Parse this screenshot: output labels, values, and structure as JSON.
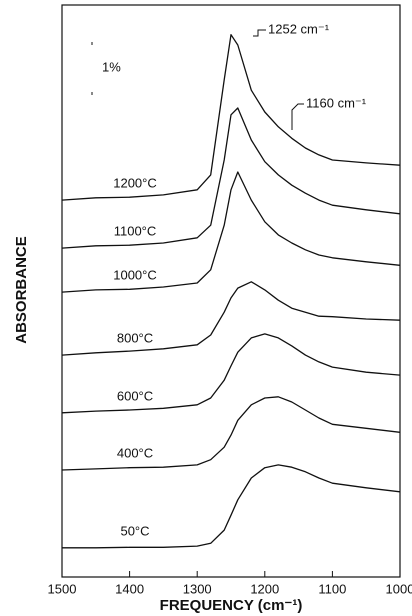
{
  "chart_data": {
    "type": "line",
    "xlabel": "FREQUENCY (cm⁻¹)",
    "ylabel": "ABSORBANCE",
    "scale_label": "1%",
    "annotations": [
      "1252 cm⁻¹",
      "1160 cm⁻¹"
    ],
    "xlim": [
      1500,
      1000
    ],
    "xticks": [
      1500,
      1400,
      1300,
      1200,
      1100,
      1000
    ],
    "ylim": [
      0,
      100
    ],
    "x": [
      1500,
      1450,
      1400,
      1350,
      1300,
      1280,
      1260,
      1250,
      1240,
      1220,
      1200,
      1180,
      1160,
      1140,
      1120,
      1100,
      1050,
      1000
    ],
    "series": [
      {
        "name": "1200°C",
        "color": "#111111",
        "values": [
          65.9,
          66.3,
          66.4,
          66.8,
          67.7,
          70.3,
          86.9,
          94.8,
          93.0,
          85.1,
          81.3,
          78.7,
          76.7,
          75.0,
          73.8,
          72.9,
          72.4,
          72.0
        ]
      },
      {
        "name": "1100°C",
        "color": "#111111",
        "values": [
          57.5,
          57.9,
          58.0,
          58.4,
          59.3,
          61.5,
          72.9,
          80.8,
          82.0,
          76.4,
          72.6,
          70.3,
          68.5,
          67.1,
          65.9,
          65.0,
          64.2,
          63.5
        ]
      },
      {
        "name": "1000°C",
        "color": "#111111",
        "values": [
          49.8,
          50.2,
          50.3,
          50.7,
          51.4,
          53.7,
          61.5,
          67.7,
          70.8,
          65.9,
          62.1,
          59.8,
          58.4,
          57.2,
          56.3,
          55.8,
          55.1,
          54.5
        ]
      },
      {
        "name": "800°C",
        "color": "#111111",
        "values": [
          38.8,
          39.2,
          39.5,
          39.9,
          40.6,
          42.3,
          46.3,
          48.8,
          50.5,
          51.6,
          50.2,
          48.4,
          47.0,
          46.3,
          45.6,
          45.5,
          45.1,
          44.9
        ]
      },
      {
        "name": "600°C",
        "color": "#111111",
        "values": [
          28.7,
          29.0,
          29.2,
          29.5,
          30.1,
          31.3,
          34.4,
          36.9,
          39.3,
          41.8,
          42.5,
          41.8,
          40.4,
          38.8,
          37.6,
          36.7,
          35.8,
          35.3
        ]
      },
      {
        "name": "400°C",
        "color": "#111111",
        "values": [
          18.7,
          18.9,
          19.1,
          19.2,
          19.6,
          20.5,
          22.7,
          24.8,
          27.4,
          30.1,
          31.3,
          31.5,
          30.6,
          29.2,
          27.8,
          26.7,
          26.0,
          25.3
        ]
      },
      {
        "name": "50°C",
        "color": "#111111",
        "values": [
          5.1,
          5.1,
          5.2,
          5.2,
          5.4,
          5.9,
          8.2,
          10.8,
          13.5,
          17.3,
          19.1,
          19.6,
          19.2,
          18.4,
          17.3,
          16.4,
          15.6,
          14.9
        ]
      }
    ]
  }
}
